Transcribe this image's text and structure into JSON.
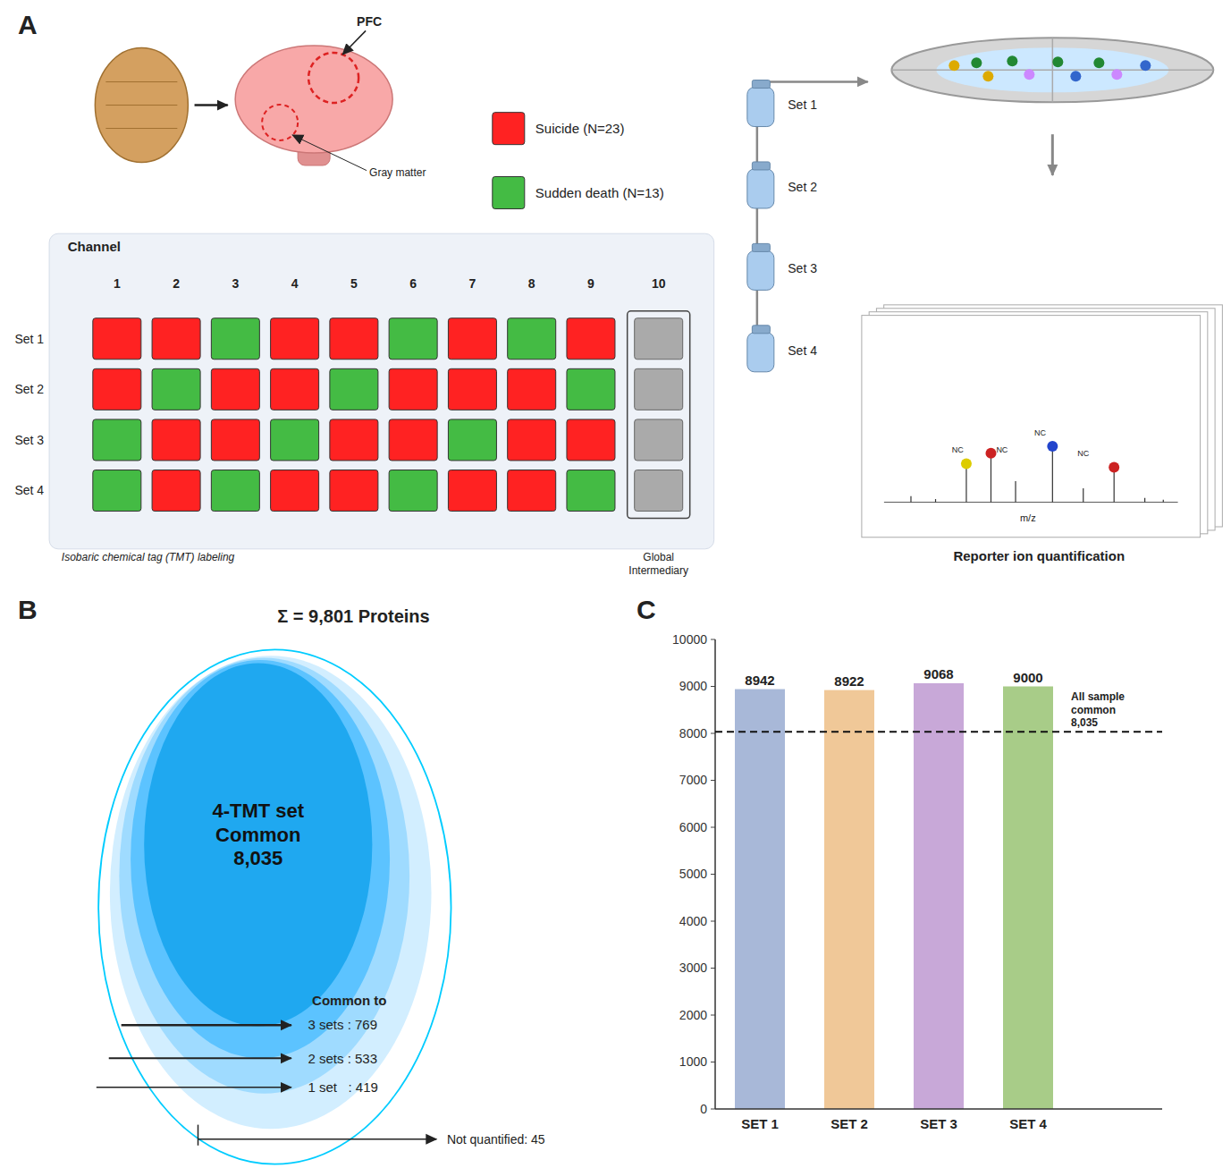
{
  "chart_data": [
    {
      "type": "diagram",
      "panel_label": "A",
      "categories": [
        "1",
        "2",
        "3",
        "4",
        "5",
        "6",
        "7",
        "8",
        "9",
        "10"
      ],
      "series": [
        {
          "name": "Set 1",
          "colors": [
            "#FF2222",
            "#FF2222",
            "#44BB44",
            "#FF2222",
            "#FF2222",
            "#44BB44",
            "#FF2222",
            "#44BB44",
            "#FF2222",
            "#AAAAAA"
          ]
        },
        {
          "name": "Set 2",
          "colors": [
            "#FF2222",
            "#44BB44",
            "#FF2222",
            "#FF2222",
            "#44BB44",
            "#FF2222",
            "#FF2222",
            "#FF2222",
            "#44BB44",
            "#AAAAAA"
          ]
        },
        {
          "name": "Set 3",
          "colors": [
            "#44BB44",
            "#FF2222",
            "#FF2222",
            "#44BB44",
            "#FF2222",
            "#FF2222",
            "#44BB44",
            "#FF2222",
            "#FF2222",
            "#AAAAAA"
          ]
        },
        {
          "name": "Set 4",
          "colors": [
            "#44BB44",
            "#FF2222",
            "#44BB44",
            "#FF2222",
            "#FF2222",
            "#44BB44",
            "#FF2222",
            "#FF2222",
            "#44BB44",
            "#AAAAAA"
          ]
        }
      ],
      "legend_entries": [
        {
          "name": "Suicide (N=23)",
          "color": "#FF2222"
        },
        {
          "name": "Sudden death (N=13)",
          "color": "#44BB44"
        }
      ],
      "annotations": {
        "channel": "Channel",
        "bottom": "Isobaric chemical tag (TMT) labeling",
        "global": "Global\nIntermediary",
        "pfc": "PFC",
        "gray_matter": "Gray matter",
        "mz": "m/z",
        "reporter": "Reporter ion quantification"
      },
      "peak_labels": [
        "NC",
        "NC",
        "NC",
        "NC"
      ]
    },
    {
      "type": "venn",
      "panel_label": "B",
      "title": "Σ = 9,801 Proteins",
      "center_label": "4-TMT set\nCommon\n8,035",
      "common_to_label": "Common to",
      "annotations": [
        "3 sets : 769",
        "2 sets : 533",
        "1 set   : 419"
      ],
      "not_quantified_label": "Not quantified: 45"
    },
    {
      "type": "bar",
      "panel_label": "C",
      "categories": [
        "SET 1",
        "SET 2",
        "SET 3",
        "SET 4"
      ],
      "values": [
        8942,
        8922,
        9068,
        9000
      ],
      "colors": [
        "#A8B8D8",
        "#F0C898",
        "#C8A8D8",
        "#A8CC88"
      ],
      "data_labels": true,
      "grid": false,
      "ylim": [
        0,
        10000
      ],
      "yticks": [
        0,
        1000,
        2000,
        3000,
        4000,
        5000,
        6000,
        7000,
        8000,
        9000,
        10000
      ],
      "reference_line": {
        "value": 8035,
        "label": "All sample\ncommon\n8,035"
      }
    }
  ]
}
